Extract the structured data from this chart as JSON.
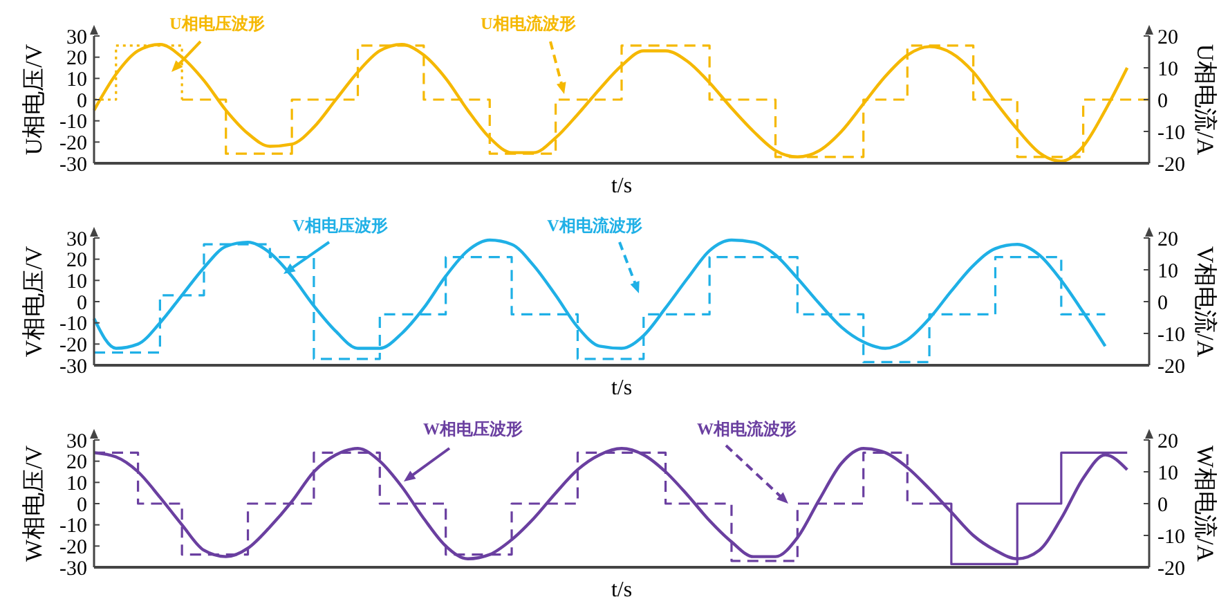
{
  "chart_data": [
    {
      "type": "line",
      "xlabel": "t/s",
      "ylabel": "U相电压/V",
      "y2label": "U相电流/A",
      "ylim": [
        -30,
        30
      ],
      "yticks": [
        -30,
        -20,
        -10,
        0,
        10,
        20,
        30
      ],
      "y2lim": [
        -20,
        20
      ],
      "y2ticks": [
        -20,
        -10,
        0,
        10,
        20
      ],
      "annotations": [
        "U相电压波形",
        "U相电流波形"
      ],
      "categories": [
        null,
        null,
        null,
        null,
        null,
        null,
        null,
        null,
        null,
        null,
        null,
        null,
        null,
        null,
        null,
        null,
        null,
        null,
        null,
        null,
        null,
        null,
        null,
        null,
        null,
        null,
        null,
        null,
        null,
        null,
        null,
        null,
        null,
        null,
        null,
        null,
        null,
        null,
        null,
        null,
        null,
        null,
        null,
        null,
        null,
        null,
        null,
        null,
        null
      ],
      "series": [
        {
          "color": "#f5b800",
          "line_style": "solid",
          "values": [
            -5,
            12,
            23,
            26,
            20,
            9,
            -5,
            -16,
            -22,
            -21,
            -13,
            0,
            13,
            23,
            26,
            21,
            10,
            -5,
            -18,
            -25,
            -25,
            -18,
            -7,
            5,
            16,
            23,
            23,
            18,
            8,
            -4,
            -15,
            -24,
            -27,
            -24,
            -15,
            -2,
            11,
            21,
            25,
            22,
            13,
            -1,
            -14,
            -25,
            -29,
            -22,
            -5,
            15,
            null
          ]
        },
        {
          "type": "step",
          "axis": "y2",
          "color": "#f5b800",
          "line_style": "dotted",
          "values": [
            0,
            17,
            17,
            17,
            0,
            null,
            null,
            null,
            null,
            null,
            null,
            null,
            null,
            null,
            null,
            null,
            null,
            null,
            null,
            null,
            null,
            null,
            null,
            null,
            null,
            null,
            null,
            null,
            null,
            null,
            null,
            null,
            null,
            null,
            null,
            null,
            null,
            null,
            null,
            null,
            null,
            null,
            null,
            null,
            null,
            null,
            null,
            null,
            null
          ]
        },
        {
          "type": "step",
          "axis": "y2",
          "color": "#f5b800",
          "line_style": "dashed",
          "values": [
            null,
            null,
            null,
            null,
            0,
            0,
            -17,
            -17,
            -17,
            0,
            0,
            0,
            17,
            17,
            17,
            0,
            0,
            0,
            -17,
            -17,
            -17,
            0,
            0,
            0,
            17,
            17,
            17,
            17,
            0,
            0,
            0,
            -18,
            -18,
            -18,
            -18,
            0,
            0,
            17,
            17,
            17,
            0,
            0,
            -18,
            -18,
            -18,
            0,
            0,
            0,
            0
          ]
        }
      ]
    },
    {
      "type": "line",
      "xlabel": "t/s",
      "ylabel": "V相电压/V",
      "y2label": "V相电流/A",
      "ylim": [
        -30,
        30
      ],
      "yticks": [
        -30,
        -20,
        -10,
        0,
        10,
        20,
        30
      ],
      "y2lim": [
        -20,
        20
      ],
      "y2ticks": [
        -20,
        -10,
        0,
        10,
        20
      ],
      "annotations": [
        "V相电压波形",
        "V相电流波形"
      ],
      "categories": [
        null,
        null,
        null,
        null,
        null,
        null,
        null,
        null,
        null,
        null,
        null,
        null,
        null,
        null,
        null,
        null,
        null,
        null,
        null,
        null,
        null,
        null,
        null,
        null,
        null,
        null,
        null,
        null,
        null,
        null,
        null,
        null,
        null,
        null,
        null,
        null,
        null,
        null,
        null,
        null,
        null,
        null,
        null,
        null,
        null,
        null,
        null,
        null,
        null
      ],
      "series": [
        {
          "color": "#1fb0e6",
          "line_style": "solid",
          "values": [
            -8,
            -22,
            -20,
            -10,
            3,
            16,
            26,
            28,
            23,
            12,
            -2,
            -14,
            -22,
            -22,
            -15,
            -3,
            12,
            24,
            29,
            27,
            17,
            3,
            -12,
            -21,
            -22,
            -16,
            -3,
            11,
            24,
            29,
            28,
            22,
            11,
            -1,
            -12,
            -19,
            -22,
            -18,
            -8,
            5,
            17,
            25,
            27,
            22,
            10,
            -5,
            -21,
            null,
            null
          ]
        },
        {
          "type": "step",
          "axis": "y2",
          "color": "#1fb0e6",
          "line_style": "dashed",
          "values": [
            -16,
            -16,
            -16,
            2,
            2,
            18,
            18,
            18,
            14,
            14,
            -18,
            -18,
            -18,
            -4,
            -4,
            -4,
            14,
            14,
            14,
            -4,
            -4,
            -4,
            -18,
            -18,
            -18,
            -4,
            -4,
            -4,
            14,
            14,
            14,
            14,
            -4,
            -4,
            -4,
            -19,
            -19,
            -19,
            -4,
            -4,
            -4,
            14,
            14,
            14,
            -4,
            -4,
            -4,
            null,
            null
          ]
        }
      ]
    },
    {
      "type": "line",
      "xlabel": "t/s",
      "ylabel": "W相电压/V",
      "y2label": "W相电流/A",
      "ylim": [
        -30,
        30
      ],
      "yticks": [
        -30,
        -20,
        -10,
        0,
        10,
        20,
        30
      ],
      "y2lim": [
        -20,
        20
      ],
      "y2ticks": [
        -20,
        -10,
        0,
        10,
        20
      ],
      "annotations": [
        "W相电压波形",
        "W相电流波形"
      ],
      "categories": [
        null,
        null,
        null,
        null,
        null,
        null,
        null,
        null,
        null,
        null,
        null,
        null,
        null,
        null,
        null,
        null,
        null,
        null,
        null,
        null,
        null,
        null,
        null,
        null,
        null,
        null,
        null,
        null,
        null,
        null,
        null,
        null,
        null,
        null,
        null,
        null,
        null,
        null,
        null,
        null,
        null,
        null,
        null,
        null,
        null,
        null,
        null,
        null,
        null
      ],
      "series": [
        {
          "color": "#6a3fa0",
          "line_style": "solid",
          "values": [
            24,
            22,
            15,
            3,
            -10,
            -22,
            -25,
            -21,
            -11,
            1,
            15,
            23,
            26,
            20,
            8,
            -7,
            -20,
            -26,
            -24,
            -17,
            -7,
            5,
            16,
            23,
            26,
            23,
            15,
            4,
            -8,
            -18,
            -25,
            -25,
            -16,
            2,
            19,
            26,
            24,
            17,
            7,
            -4,
            -15,
            -22,
            -26,
            -22,
            -7,
            12,
            23,
            16,
            null
          ]
        },
        {
          "type": "step",
          "axis": "y2",
          "color": "#6a3fa0",
          "line_style": "dashed",
          "values": [
            16,
            16,
            0,
            0,
            -16,
            -16,
            -16,
            0,
            0,
            0,
            16,
            16,
            16,
            0,
            0,
            0,
            -16,
            -16,
            -16,
            0,
            0,
            0,
            16,
            16,
            16,
            16,
            0,
            0,
            0,
            -18,
            -18,
            -18,
            0,
            0,
            0,
            16,
            16,
            0,
            0,
            null,
            null,
            null,
            null,
            null,
            null,
            null,
            null,
            null,
            null
          ]
        },
        {
          "type": "step",
          "axis": "y2",
          "color": "#6a3fa0",
          "line_style": "solid",
          "values": [
            null,
            null,
            null,
            null,
            null,
            null,
            null,
            null,
            null,
            null,
            null,
            null,
            null,
            null,
            null,
            null,
            null,
            null,
            null,
            null,
            null,
            null,
            null,
            null,
            null,
            null,
            null,
            null,
            null,
            null,
            null,
            null,
            null,
            null,
            null,
            null,
            null,
            null,
            0,
            -19,
            -19,
            -19,
            0,
            0,
            16,
            16,
            16,
            16,
            null
          ]
        }
      ]
    }
  ]
}
